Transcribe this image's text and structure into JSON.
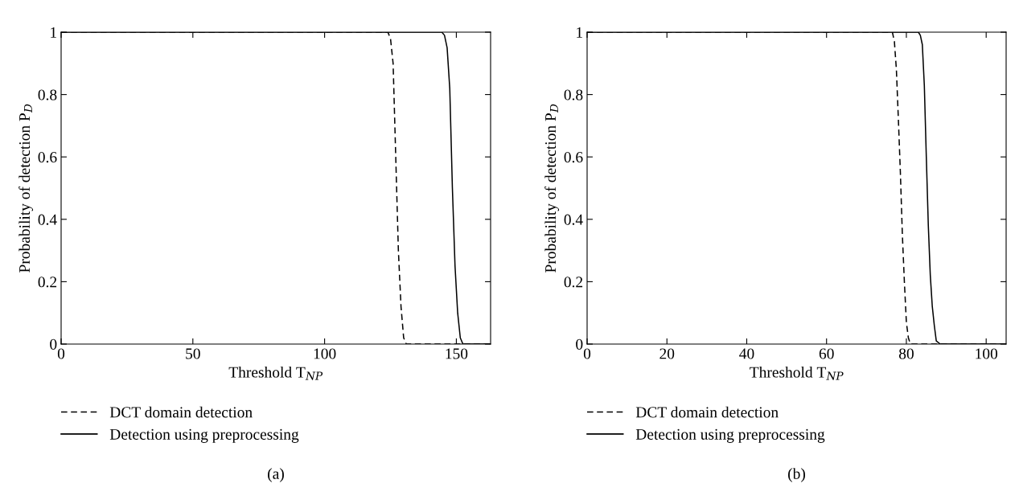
{
  "chart_data": [
    {
      "type": "line",
      "xlabel": "Threshold T$_{NP}$",
      "ylabel": "Probability of detection P$_{D}$",
      "xlim": [
        0,
        163
      ],
      "xticks": [
        0,
        50,
        100,
        150
      ],
      "ylim": [
        0,
        1
      ],
      "yticks": [
        0,
        0.2,
        0.4,
        0.6,
        0.8,
        1
      ],
      "legend": "bottom",
      "grid": false,
      "annotations": [
        "(a)"
      ],
      "series": [
        {
          "name": "DCT domain detection",
          "color": "#000000",
          "line_style": "dashed",
          "x": [
            0,
            124,
            125,
            126,
            127,
            128,
            129,
            130,
            131,
            163
          ],
          "values": [
            1,
            1,
            0.98,
            0.9,
            0.6,
            0.3,
            0.12,
            0.02,
            0,
            0
          ]
        },
        {
          "name": "Detection using preprocessing",
          "color": "#000000",
          "line_style": "solid",
          "x": [
            0,
            144.5,
            145.5,
            146.5,
            147.5,
            148.5,
            149.5,
            150.5,
            151.5,
            152.5,
            163
          ],
          "values": [
            1,
            1,
            0.99,
            0.95,
            0.82,
            0.5,
            0.25,
            0.1,
            0.02,
            0,
            0
          ]
        }
      ]
    },
    {
      "type": "line",
      "xlabel": "Threshold T$_{NP}$",
      "ylabel": "Probability of detection P$_{D}$",
      "xlim": [
        0,
        105
      ],
      "xticks": [
        0,
        20,
        40,
        60,
        80,
        100
      ],
      "ylim": [
        0,
        1
      ],
      "yticks": [
        0,
        0.2,
        0.4,
        0.6,
        0.8,
        1
      ],
      "legend": "bottom",
      "grid": false,
      "annotations": [
        "(b)"
      ],
      "series": [
        {
          "name": "DCT domain detection",
          "color": "#000000",
          "line_style": "dashed",
          "x": [
            0,
            76.5,
            77,
            77.5,
            78,
            78.5,
            79,
            79.5,
            80,
            80.5,
            81,
            105
          ],
          "values": [
            1,
            1,
            0.97,
            0.88,
            0.72,
            0.55,
            0.35,
            0.2,
            0.07,
            0.02,
            0,
            0
          ]
        },
        {
          "name": "Detection using preprocessing",
          "color": "#000000",
          "line_style": "solid",
          "x": [
            0,
            83,
            83.5,
            84,
            84.5,
            85,
            85.5,
            86,
            86.5,
            87,
            87.5,
            88.5,
            105
          ],
          "values": [
            1,
            1,
            0.99,
            0.96,
            0.83,
            0.6,
            0.38,
            0.22,
            0.12,
            0.06,
            0.01,
            0,
            0
          ]
        }
      ]
    }
  ]
}
